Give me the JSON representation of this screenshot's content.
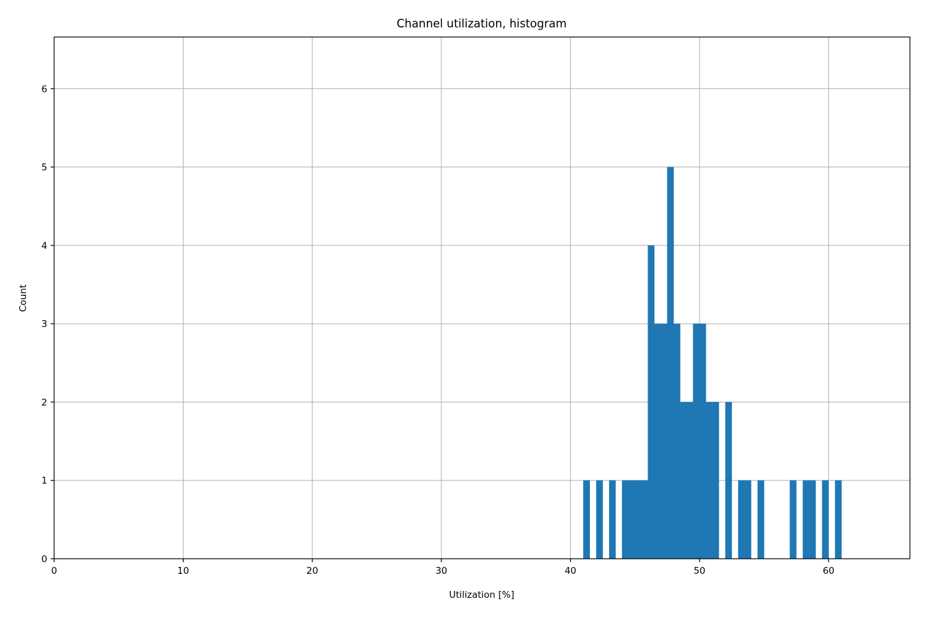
{
  "chart_data": {
    "type": "bar",
    "title": "Channel utilization, histogram",
    "xlabel": "Utilization [%]",
    "ylabel": "Count",
    "xlim": [
      0,
      66.3
    ],
    "ylim": [
      0,
      6.66
    ],
    "xticks": [
      0,
      10,
      20,
      30,
      40,
      50,
      60
    ],
    "yticks": [
      0,
      1,
      2,
      3,
      4,
      5,
      6
    ],
    "grid": true,
    "bar_color": "#1f77b4",
    "bin_width": 0.5,
    "bins": [
      {
        "x": 41.0,
        "count": 1
      },
      {
        "x": 42.0,
        "count": 1
      },
      {
        "x": 43.0,
        "count": 1
      },
      {
        "x": 44.0,
        "count": 1
      },
      {
        "x": 44.5,
        "count": 1
      },
      {
        "x": 45.0,
        "count": 1
      },
      {
        "x": 45.5,
        "count": 1
      },
      {
        "x": 46.0,
        "count": 4
      },
      {
        "x": 46.5,
        "count": 3
      },
      {
        "x": 47.0,
        "count": 3
      },
      {
        "x": 47.5,
        "count": 5
      },
      {
        "x": 48.0,
        "count": 3
      },
      {
        "x": 48.5,
        "count": 2
      },
      {
        "x": 49.0,
        "count": 2
      },
      {
        "x": 49.5,
        "count": 3
      },
      {
        "x": 50.0,
        "count": 3
      },
      {
        "x": 50.5,
        "count": 2
      },
      {
        "x": 51.0,
        "count": 2
      },
      {
        "x": 52.0,
        "count": 2
      },
      {
        "x": 53.0,
        "count": 1
      },
      {
        "x": 53.5,
        "count": 1
      },
      {
        "x": 54.5,
        "count": 1
      },
      {
        "x": 57.0,
        "count": 1
      },
      {
        "x": 58.0,
        "count": 1
      },
      {
        "x": 58.5,
        "count": 1
      },
      {
        "x": 59.5,
        "count": 1
      },
      {
        "x": 60.5,
        "count": 1
      }
    ]
  }
}
